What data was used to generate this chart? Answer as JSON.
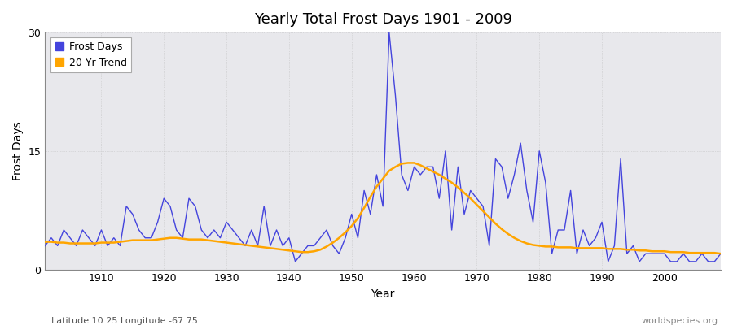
{
  "title": "Yearly Total Frost Days 1901 - 2009",
  "xlabel": "Year",
  "ylabel": "Frost Days",
  "subtitle_left": "Latitude 10.25 Longitude -67.75",
  "subtitle_right": "worldspecies.org",
  "frost_line_color": "#4444dd",
  "trend_line_color": "#ffa500",
  "axes_bg_color": "#e8e8ec",
  "fig_bg_color": "#ffffff",
  "ylim": [
    0,
    30
  ],
  "yticks": [
    0,
    15,
    30
  ],
  "xlim": [
    1901,
    2009
  ],
  "years": [
    1901,
    1902,
    1903,
    1904,
    1905,
    1906,
    1907,
    1908,
    1909,
    1910,
    1911,
    1912,
    1913,
    1914,
    1915,
    1916,
    1917,
    1918,
    1919,
    1920,
    1921,
    1922,
    1923,
    1924,
    1925,
    1926,
    1927,
    1928,
    1929,
    1930,
    1931,
    1932,
    1933,
    1934,
    1935,
    1936,
    1937,
    1938,
    1939,
    1940,
    1941,
    1942,
    1943,
    1944,
    1945,
    1946,
    1947,
    1948,
    1949,
    1950,
    1951,
    1952,
    1953,
    1954,
    1955,
    1956,
    1957,
    1958,
    1959,
    1960,
    1961,
    1962,
    1963,
    1964,
    1965,
    1966,
    1967,
    1968,
    1969,
    1970,
    1971,
    1972,
    1973,
    1974,
    1975,
    1976,
    1977,
    1978,
    1979,
    1980,
    1981,
    1982,
    1983,
    1984,
    1985,
    1986,
    1987,
    1988,
    1989,
    1990,
    1991,
    1992,
    1993,
    1994,
    1995,
    1996,
    1997,
    1998,
    1999,
    2000,
    2001,
    2002,
    2003,
    2004,
    2005,
    2006,
    2007,
    2008,
    2009
  ],
  "frost_days": [
    3,
    4,
    3,
    5,
    4,
    3,
    5,
    4,
    3,
    5,
    3,
    4,
    3,
    8,
    7,
    5,
    4,
    4,
    6,
    9,
    8,
    5,
    4,
    9,
    8,
    5,
    4,
    5,
    4,
    6,
    5,
    4,
    3,
    5,
    3,
    8,
    3,
    5,
    3,
    4,
    1,
    2,
    3,
    3,
    4,
    5,
    3,
    2,
    4,
    7,
    4,
    10,
    7,
    12,
    8,
    30,
    22,
    12,
    10,
    13,
    12,
    13,
    13,
    9,
    15,
    5,
    13,
    7,
    10,
    9,
    8,
    3,
    14,
    13,
    9,
    12,
    16,
    10,
    6,
    15,
    11,
    2,
    5,
    5,
    10,
    2,
    5,
    3,
    4,
    6,
    1,
    3,
    14,
    2,
    3,
    1,
    2,
    2,
    2,
    2,
    1,
    1,
    2,
    1,
    1,
    2,
    1,
    1,
    2
  ],
  "trend_years": [
    1901,
    1902,
    1903,
    1904,
    1905,
    1906,
    1907,
    1908,
    1909,
    1910,
    1911,
    1912,
    1913,
    1914,
    1915,
    1916,
    1917,
    1918,
    1919,
    1920,
    1921,
    1922,
    1923,
    1924,
    1925,
    1926,
    1927,
    1928,
    1929,
    1930,
    1931,
    1932,
    1933,
    1934,
    1935,
    1936,
    1937,
    1938,
    1939,
    1940,
    1941,
    1942,
    1943,
    1944,
    1945,
    1946,
    1947,
    1948,
    1949,
    1950,
    1951,
    1952,
    1953,
    1954,
    1955,
    1956,
    1957,
    1958,
    1959,
    1960,
    1961,
    1962,
    1963,
    1964,
    1965,
    1966,
    1967,
    1968,
    1969,
    1970,
    1971,
    1972,
    1973,
    1974,
    1975,
    1976,
    1977,
    1978,
    1979,
    1980,
    1981,
    1982,
    1983,
    1984,
    1985,
    1986,
    1987,
    1988,
    1989,
    1990,
    1991,
    1992,
    1993,
    1994,
    1995,
    1996,
    1997,
    1998,
    1999,
    2000,
    2001,
    2002,
    2003,
    2004,
    2005,
    2006,
    2007,
    2008,
    2009
  ],
  "trend_values": [
    3.5,
    3.5,
    3.4,
    3.4,
    3.3,
    3.3,
    3.3,
    3.3,
    3.3,
    3.4,
    3.4,
    3.4,
    3.5,
    3.6,
    3.7,
    3.7,
    3.7,
    3.7,
    3.8,
    3.9,
    4.0,
    4.0,
    3.9,
    3.8,
    3.8,
    3.8,
    3.7,
    3.6,
    3.5,
    3.4,
    3.3,
    3.2,
    3.1,
    3.0,
    2.9,
    2.8,
    2.7,
    2.6,
    2.5,
    2.4,
    2.3,
    2.2,
    2.2,
    2.3,
    2.5,
    2.9,
    3.4,
    4.0,
    4.7,
    5.5,
    6.5,
    7.8,
    9.2,
    10.5,
    11.5,
    12.5,
    13.0,
    13.4,
    13.5,
    13.5,
    13.2,
    12.8,
    12.4,
    12.0,
    11.5,
    11.0,
    10.4,
    9.7,
    9.0,
    8.2,
    7.4,
    6.6,
    5.8,
    5.1,
    4.5,
    4.0,
    3.6,
    3.3,
    3.1,
    3.0,
    2.9,
    2.9,
    2.8,
    2.8,
    2.8,
    2.7,
    2.7,
    2.7,
    2.7,
    2.7,
    2.6,
    2.6,
    2.6,
    2.5,
    2.5,
    2.4,
    2.4,
    2.3,
    2.3,
    2.3,
    2.2,
    2.2,
    2.2,
    2.1,
    2.1,
    2.1,
    2.1,
    2.1,
    2.0
  ]
}
